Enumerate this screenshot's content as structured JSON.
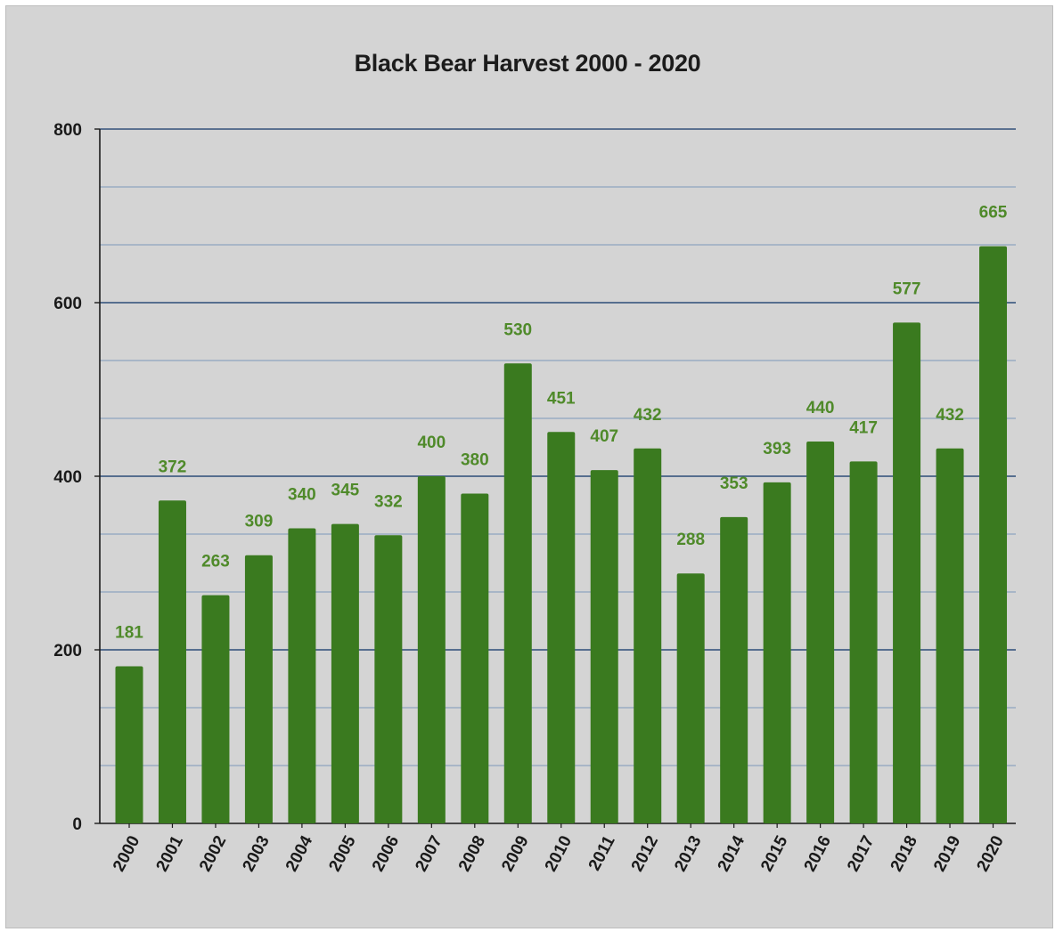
{
  "chart_data": {
    "type": "bar",
    "title": "Black Bear Harvest 2000 - 2020",
    "xlabel": "",
    "ylabel": "",
    "ylim": [
      0,
      800
    ],
    "yticks": [
      0,
      200,
      400,
      600,
      800
    ],
    "minor_grid_step": 66.67,
    "grid": true,
    "legend": "none",
    "bar_color": "#3a7a1f",
    "data_label_color": "#4f8a2a",
    "background_color": "#d4d4d4",
    "grid_color": "#33507a",
    "categories": [
      "2000",
      "2001",
      "2002",
      "2003",
      "2004",
      "2005",
      "2006",
      "2007",
      "2008",
      "2009",
      "2010",
      "2011",
      "2012",
      "2013",
      "2014",
      "2015",
      "2016",
      "2017",
      "2018",
      "2019",
      "2020"
    ],
    "values": [
      181,
      372,
      263,
      309,
      340,
      345,
      332,
      400,
      380,
      530,
      451,
      407,
      432,
      288,
      353,
      393,
      440,
      417,
      577,
      432,
      665
    ],
    "data_labels": [
      "181",
      "372",
      "263",
      "309",
      "340",
      "345",
      "332",
      "400",
      "380",
      "530",
      "451",
      "407",
      "432",
      "288",
      "353",
      "393",
      "440",
      "417",
      "577",
      "432",
      "665"
    ]
  }
}
